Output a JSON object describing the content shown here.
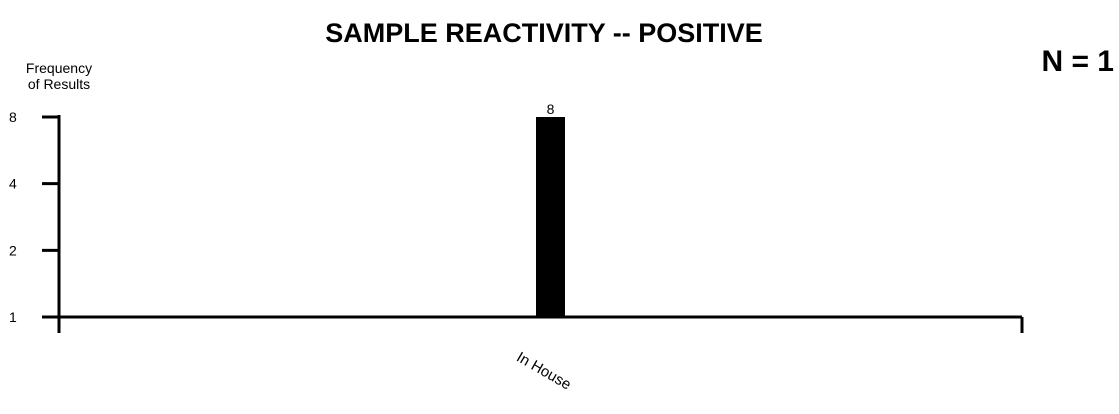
{
  "colors": {
    "bar": "#000000",
    "axis": "#000000",
    "background": "#ffffff"
  },
  "chart_data": {
    "type": "bar",
    "title": "SAMPLE REACTIVITY -- POSITIVE",
    "ylabel_line1": "Frequency",
    "ylabel_line2": "of Results",
    "n_label": "N = 1",
    "y_scale": "log2",
    "ylim": [
      1,
      8
    ],
    "y_ticks": [
      "8",
      "4",
      "2",
      "1"
    ],
    "categories": [
      "In House"
    ],
    "values": [
      8
    ],
    "data_labels": [
      "8"
    ],
    "grid": false,
    "legend": "none"
  }
}
